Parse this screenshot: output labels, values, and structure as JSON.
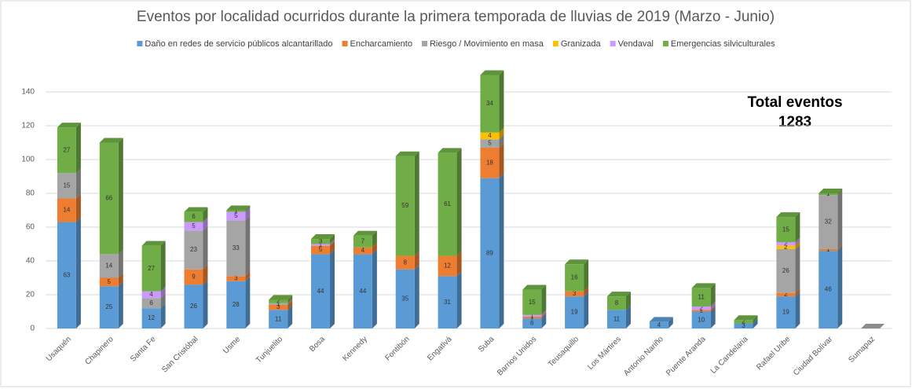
{
  "chart_data": {
    "type": "bar3d_stacked",
    "title": "Eventos por localidad ocurridos durante la primera temporada de lluvias de 2019 (Marzo - Junio)",
    "annotation": [
      "Total eventos",
      "1283"
    ],
    "categories": [
      "Usaquén",
      "Chapinero",
      "Santa Fe",
      "San Cristóbal",
      "Usme",
      "Tunjuelito",
      "Bosa",
      "Kennedy",
      "Fontibón",
      "Engativá",
      "Suba",
      "Barrios Unidos",
      "Teusaquillo",
      "Los Mártires",
      "Antonio Nariño",
      "Puente Aranda",
      "La Candelaria",
      "Rafael Uribe",
      "Ciudad Bolívar",
      "Sumapaz"
    ],
    "series": [
      {
        "name": "Daño en redes de servicio públicos alcantarillado",
        "color": "#5b9bd5",
        "values": [
          63,
          25,
          12,
          26,
          28,
          11,
          44,
          44,
          35,
          31,
          89,
          6,
          19,
          11,
          4,
          10,
          3,
          19,
          46,
          0
        ]
      },
      {
        "name": "Encharcamiento",
        "color": "#ed7d31",
        "values": [
          14,
          5,
          0,
          9,
          3,
          3,
          5,
          4,
          8,
          12,
          18,
          1,
          3,
          0,
          0,
          1,
          0,
          2,
          1,
          0
        ]
      },
      {
        "name": "Riesgo / Movimiento en masa",
        "color": "#a5a5a5",
        "values": [
          15,
          14,
          6,
          23,
          33,
          1,
          0,
          0,
          0,
          0,
          5,
          0,
          0,
          0,
          0,
          0,
          0,
          26,
          32,
          0
        ]
      },
      {
        "name": "Granizada",
        "color": "#ffc000",
        "values": [
          0,
          0,
          0,
          0,
          0,
          0,
          0,
          0,
          0,
          0,
          4,
          0,
          0,
          0,
          0,
          0,
          0,
          2,
          0,
          0
        ]
      },
      {
        "name": "Vendaval",
        "color": "#cc99ff",
        "values": [
          0,
          0,
          4,
          5,
          5,
          0,
          1,
          0,
          0,
          0,
          0,
          1,
          0,
          0,
          0,
          2,
          0,
          2,
          0,
          0
        ]
      },
      {
        "name": "Emergencias silviculturales",
        "color": "#70ad47",
        "values": [
          27,
          66,
          27,
          6,
          1,
          2,
          3,
          7,
          59,
          61,
          34,
          15,
          16,
          8,
          0,
          11,
          2,
          15,
          1,
          0
        ]
      }
    ],
    "ylim": [
      0,
      150
    ],
    "yticks": [
      0,
      20,
      40,
      60,
      80,
      100,
      120,
      140
    ],
    "grid": true
  }
}
